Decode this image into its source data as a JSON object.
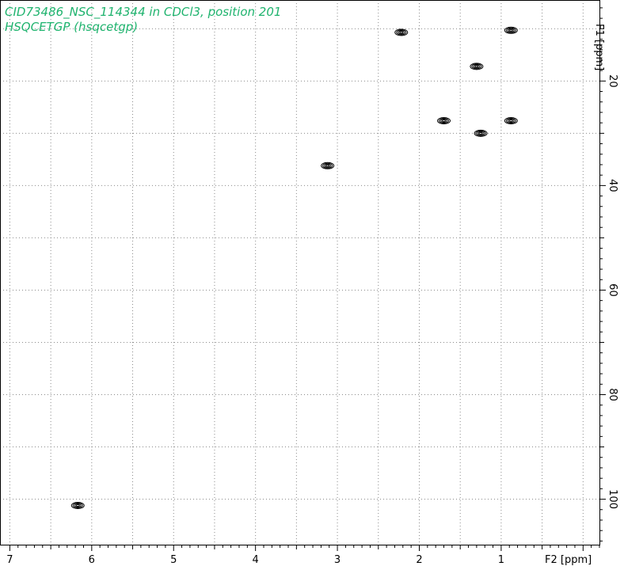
{
  "title": {
    "line1": "CID73486_NSC_114344 in CDCl3, position 201",
    "line2": "HSQCETGP (hsqcetgp)"
  },
  "colors": {
    "title": "#1fb36e",
    "contour": "#000000",
    "grid": "#8a8a8a",
    "frame": "#000000"
  },
  "chart_data": {
    "type": "scatter",
    "subtype": "2D NMR contour plot (HSQC)",
    "xlabel": "F2 [ppm]",
    "ylabel": "F1 [ppm]",
    "x_axis": {
      "reversed": true,
      "range": [
        7.12,
        -0.2
      ],
      "tick_labels": [
        "7",
        "6",
        "5",
        "4",
        "3",
        "2",
        "1"
      ]
    },
    "y_axis": {
      "reversed": true,
      "range": [
        4.5,
        108.7
      ],
      "tick_labels": [
        "20",
        "40",
        "60",
        "80",
        "100"
      ]
    },
    "grid": true,
    "peaks": [
      {
        "f2": 2.22,
        "f1": 10.7
      },
      {
        "f2": 0.88,
        "f1": 10.3
      },
      {
        "f2": 1.3,
        "f1": 17.2
      },
      {
        "f2": 1.7,
        "f1": 27.6
      },
      {
        "f2": 1.25,
        "f1": 30.0
      },
      {
        "f2": 0.88,
        "f1": 27.6
      },
      {
        "f2": 3.12,
        "f1": 36.2
      },
      {
        "f2": 6.17,
        "f1": 101.2
      }
    ]
  }
}
